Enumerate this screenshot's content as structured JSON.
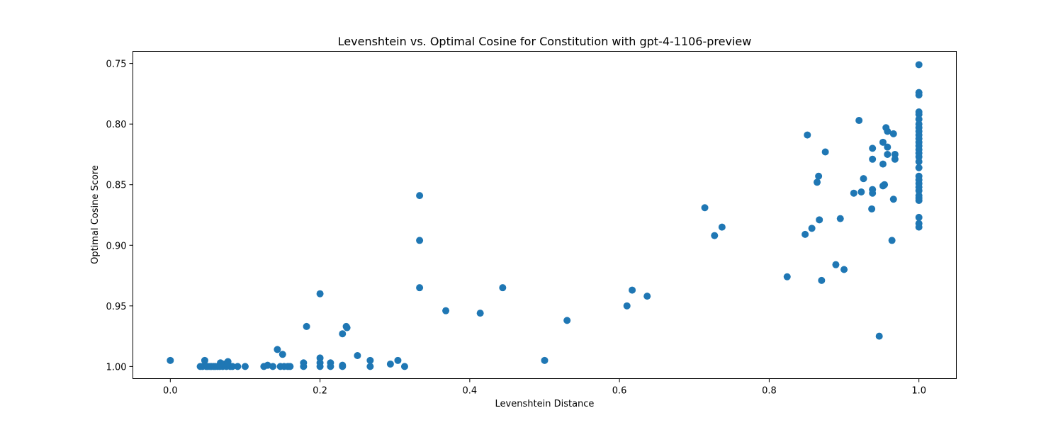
{
  "chart_data": {
    "type": "scatter",
    "title": "Levenshtein vs. Optimal Cosine for Constitution with gpt-4-1106-preview",
    "xlabel": "Levenshtein Distance",
    "ylabel": "Optimal Cosine Score",
    "xlim": [
      -0.05,
      1.05
    ],
    "ylim": [
      1.01,
      0.74
    ],
    "y_inverted": true,
    "x_ticks": [
      0.0,
      0.2,
      0.4,
      0.6,
      0.8,
      1.0
    ],
    "x_tick_labels": [
      "0.0",
      "0.2",
      "0.4",
      "0.6",
      "0.8",
      "1.0"
    ],
    "y_ticks": [
      0.75,
      0.8,
      0.85,
      0.9,
      0.95,
      1.0
    ],
    "y_tick_labels": [
      "0.75",
      "0.80",
      "0.85",
      "0.90",
      "0.95",
      "1.00"
    ],
    "grid": false,
    "color": "#1f77b4",
    "points": [
      [
        0.0,
        0.995
      ],
      [
        0.04,
        1.0
      ],
      [
        0.043,
        1.0
      ],
      [
        0.046,
        0.995
      ],
      [
        0.048,
        1.0
      ],
      [
        0.05,
        1.0
      ],
      [
        0.053,
        1.0
      ],
      [
        0.055,
        1.0
      ],
      [
        0.058,
        1.0
      ],
      [
        0.06,
        1.0
      ],
      [
        0.063,
        1.0
      ],
      [
        0.066,
        1.0
      ],
      [
        0.067,
        0.997
      ],
      [
        0.07,
        1.0
      ],
      [
        0.072,
        0.998
      ],
      [
        0.075,
        1.0
      ],
      [
        0.077,
        0.996
      ],
      [
        0.08,
        1.0
      ],
      [
        0.083,
        1.0
      ],
      [
        0.09,
        1.0
      ],
      [
        0.1,
        1.0
      ],
      [
        0.125,
        1.0
      ],
      [
        0.13,
        0.999
      ],
      [
        0.137,
        1.0
      ],
      [
        0.143,
        0.986
      ],
      [
        0.147,
        1.0
      ],
      [
        0.15,
        0.99
      ],
      [
        0.152,
        1.0
      ],
      [
        0.157,
        1.0
      ],
      [
        0.16,
        1.0
      ],
      [
        0.178,
        0.997
      ],
      [
        0.178,
        1.0
      ],
      [
        0.182,
        0.967
      ],
      [
        0.2,
        0.94
      ],
      [
        0.2,
        0.993
      ],
      [
        0.2,
        0.997
      ],
      [
        0.2,
        1.0
      ],
      [
        0.214,
        0.997
      ],
      [
        0.214,
        1.0
      ],
      [
        0.23,
        0.973
      ],
      [
        0.23,
        0.999
      ],
      [
        0.23,
        1.0
      ],
      [
        0.235,
        0.967
      ],
      [
        0.236,
        0.968
      ],
      [
        0.25,
        0.991
      ],
      [
        0.267,
        0.995
      ],
      [
        0.267,
        1.0
      ],
      [
        0.294,
        0.998
      ],
      [
        0.304,
        0.995
      ],
      [
        0.313,
        1.0
      ],
      [
        0.333,
        0.859
      ],
      [
        0.333,
        0.896
      ],
      [
        0.333,
        0.935
      ],
      [
        0.368,
        0.954
      ],
      [
        0.414,
        0.956
      ],
      [
        0.444,
        0.935
      ],
      [
        0.5,
        0.995
      ],
      [
        0.53,
        0.962
      ],
      [
        0.61,
        0.95
      ],
      [
        0.617,
        0.937
      ],
      [
        0.637,
        0.942
      ],
      [
        0.714,
        0.869
      ],
      [
        0.727,
        0.892
      ],
      [
        0.737,
        0.885
      ],
      [
        0.824,
        0.926
      ],
      [
        0.848,
        0.891
      ],
      [
        0.851,
        0.809
      ],
      [
        0.857,
        0.886
      ],
      [
        0.864,
        0.848
      ],
      [
        0.866,
        0.843
      ],
      [
        0.867,
        0.879
      ],
      [
        0.87,
        0.929
      ],
      [
        0.875,
        0.823
      ],
      [
        0.889,
        0.916
      ],
      [
        0.895,
        0.878
      ],
      [
        0.9,
        0.92
      ],
      [
        0.913,
        0.857
      ],
      [
        0.92,
        0.797
      ],
      [
        0.923,
        0.856
      ],
      [
        0.926,
        0.845
      ],
      [
        0.937,
        0.87
      ],
      [
        0.938,
        0.82
      ],
      [
        0.938,
        0.829
      ],
      [
        0.938,
        0.854
      ],
      [
        0.938,
        0.857
      ],
      [
        0.947,
        0.975
      ],
      [
        0.952,
        0.815
      ],
      [
        0.952,
        0.833
      ],
      [
        0.952,
        0.851
      ],
      [
        0.954,
        0.85
      ],
      [
        0.956,
        0.803
      ],
      [
        0.958,
        0.806
      ],
      [
        0.958,
        0.819
      ],
      [
        0.958,
        0.825
      ],
      [
        0.964,
        0.896
      ],
      [
        0.966,
        0.808
      ],
      [
        0.966,
        0.862
      ],
      [
        0.968,
        0.825
      ],
      [
        0.968,
        0.829
      ],
      [
        1.0,
        0.751
      ],
      [
        1.0,
        0.774
      ],
      [
        1.0,
        0.776
      ],
      [
        1.0,
        0.79
      ],
      [
        1.0,
        0.792
      ],
      [
        1.0,
        0.796
      ],
      [
        1.0,
        0.8
      ],
      [
        1.0,
        0.803
      ],
      [
        1.0,
        0.806
      ],
      [
        1.0,
        0.809
      ],
      [
        1.0,
        0.812
      ],
      [
        1.0,
        0.815
      ],
      [
        1.0,
        0.818
      ],
      [
        1.0,
        0.821
      ],
      [
        1.0,
        0.824
      ],
      [
        1.0,
        0.827
      ],
      [
        1.0,
        0.831
      ],
      [
        1.0,
        0.836
      ],
      [
        1.0,
        0.843
      ],
      [
        1.0,
        0.846
      ],
      [
        1.0,
        0.849
      ],
      [
        1.0,
        0.852
      ],
      [
        1.0,
        0.855
      ],
      [
        1.0,
        0.859
      ],
      [
        1.0,
        0.861
      ],
      [
        1.0,
        0.863
      ],
      [
        1.0,
        0.877
      ],
      [
        1.0,
        0.882
      ],
      [
        1.0,
        0.885
      ]
    ]
  }
}
